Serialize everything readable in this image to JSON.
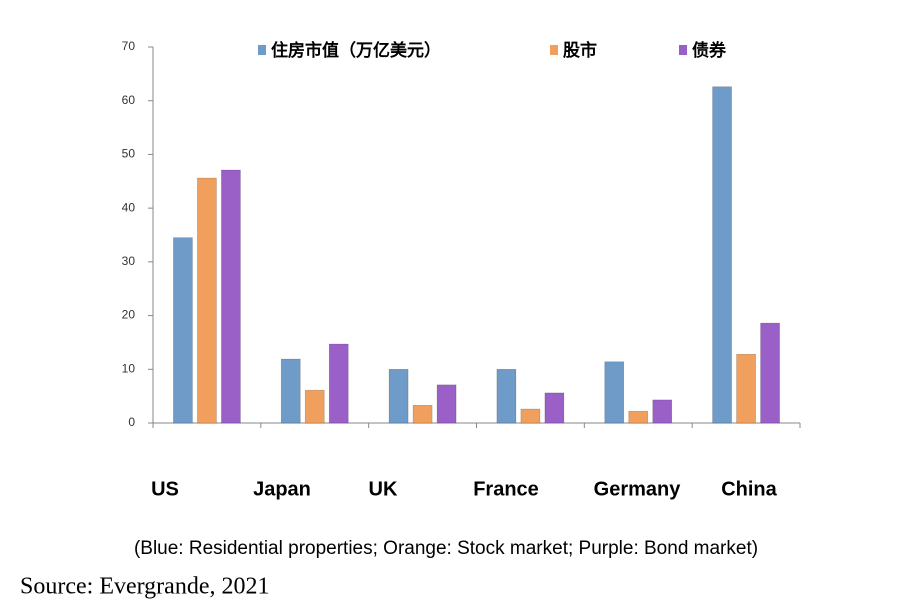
{
  "chart_data": {
    "type": "bar",
    "categories": [
      "US",
      "Japan",
      "UK",
      "France",
      "Germany",
      "China"
    ],
    "series": [
      {
        "name": "住房市值（万亿美元）",
        "color": "#6e9bc8",
        "values": [
          34.5,
          11.9,
          10,
          10,
          11.4,
          62.6
        ]
      },
      {
        "name": "股市",
        "color": "#f0a05c",
        "values": [
          45.6,
          6.1,
          3.3,
          2.6,
          2.2,
          12.8
        ]
      },
      {
        "name": "债券",
        "color": "#9b5fc8",
        "values": [
          47.1,
          14.7,
          7.1,
          5.6,
          4.3,
          18.6
        ]
      }
    ],
    "ylim": [
      0,
      70
    ],
    "yticks": [
      0,
      10,
      20,
      30,
      40,
      50,
      60,
      70
    ],
    "caption": "(Blue: Residential properties; Orange: Stock market; Purple: Bond market)",
    "source": "Source: Evergrande, 2021"
  }
}
